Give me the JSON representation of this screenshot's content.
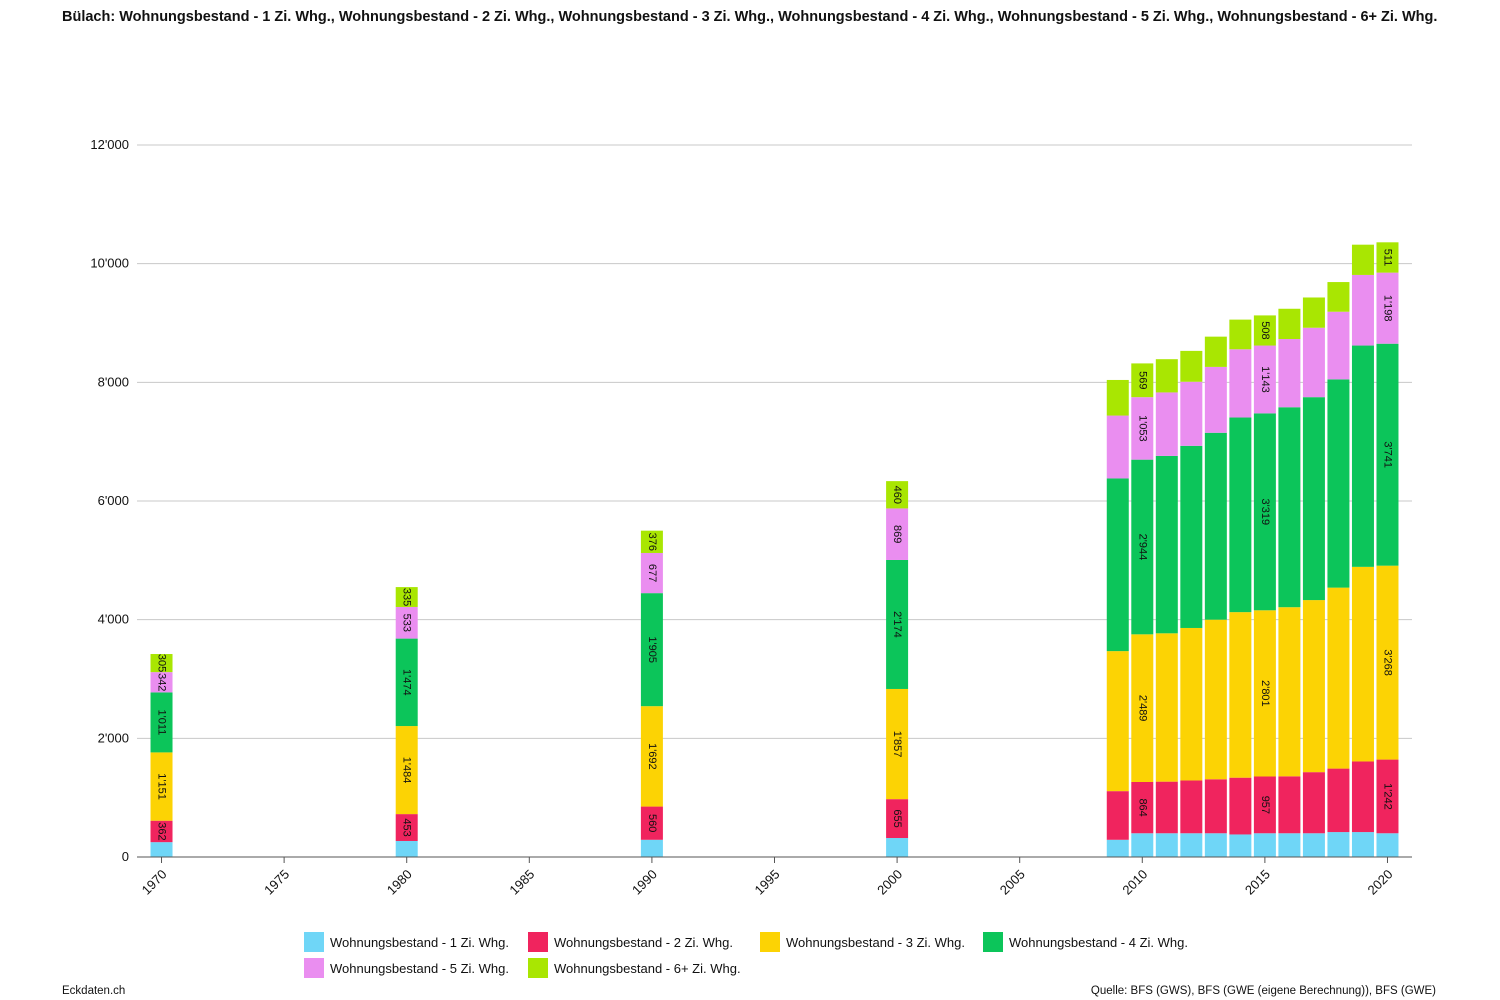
{
  "title": "Bülach: Wohnungsbestand - 1 Zi. Whg., Wohnungsbestand - 2 Zi. Whg., Wohnungsbestand - 3 Zi. Whg., Wohnungsbestand - 4 Zi. Whg., Wohnungsbestand - 5 Zi. Whg., Wohnungsbestand - 6+ Zi. Whg.",
  "footer": {
    "left": "Eckdaten.ch",
    "right": "Quelle: BFS (GWS), BFS (GWE (eigene Berechnung)), BFS (GWE)"
  },
  "chart_data": {
    "type": "bar",
    "stacked": true,
    "title": "Bülach: Wohnungsbestand - 1 Zi. Whg., Wohnungsbestand - 2 Zi. Whg., Wohnungsbestand - 3 Zi. Whg., Wohnungsbestand - 4 Zi. Whg., Wohnungsbestand - 5 Zi. Whg., Wohnungsbestand - 6+ Zi. Whg.",
    "xlabel": "",
    "ylabel": "",
    "x_ticks": [
      "1970",
      "1975",
      "1980",
      "1985",
      "1990",
      "1995",
      "2000",
      "2005",
      "2010",
      "2015",
      "2020"
    ],
    "x_range": [
      1969,
      2021
    ],
    "y_ticks": [
      "0",
      "2'000",
      "4'000",
      "6'000",
      "8'000",
      "10'000",
      "12'000"
    ],
    "ylim": [
      0,
      12000
    ],
    "grid": true,
    "legend_position": "bottom",
    "x": [
      1970,
      1980,
      1990,
      2000,
      2009,
      2010,
      2011,
      2012,
      2013,
      2014,
      2015,
      2016,
      2017,
      2018,
      2019,
      2020
    ],
    "series": [
      {
        "name": "Wohnungsbestand - 1 Zi. Whg.",
        "color": "#6fd6f7",
        "values": [
          250,
          270,
          290,
          320,
          290,
          400,
          400,
          400,
          400,
          380,
          400,
          400,
          400,
          420,
          420,
          400
        ]
      },
      {
        "name": "Wohnungsbestand - 2 Zi. Whg.",
        "color": "#f0245e",
        "values": [
          362,
          453,
          560,
          655,
          820,
          864,
          870,
          890,
          910,
          957,
          957,
          960,
          1030,
          1070,
          1190,
          1242
        ]
      },
      {
        "name": "Wohnungsbestand - 3 Zi. Whg.",
        "color": "#fcd304",
        "values": [
          1151,
          1484,
          1692,
          1857,
          2360,
          2489,
          2500,
          2570,
          2690,
          2790,
          2801,
          2850,
          2900,
          3050,
          3280,
          3268
        ]
      },
      {
        "name": "Wohnungsbestand - 4 Zi. Whg.",
        "color": "#0cc55a",
        "values": [
          1011,
          1474,
          1905,
          2174,
          2910,
          2944,
          2990,
          3070,
          3150,
          3280,
          3319,
          3370,
          3420,
          3510,
          3730,
          3741
        ]
      },
      {
        "name": "Wohnungsbestand - 5 Zi. Whg.",
        "color": "#ea8ef0",
        "values": [
          342,
          533,
          677,
          869,
          1060,
          1053,
          1070,
          1080,
          1110,
          1150,
          1143,
          1150,
          1170,
          1140,
          1190,
          1198
        ]
      },
      {
        "name": "Wohnungsbestand - 6+ Zi. Whg.",
        "color": "#a9e602",
        "values": [
          305,
          335,
          376,
          460,
          600,
          569,
          560,
          520,
          510,
          500,
          508,
          510,
          510,
          500,
          510,
          511
        ]
      }
    ],
    "data_labels": {
      "1970": [
        "362",
        "1'151",
        "1'011",
        "342",
        "305"
      ],
      "1980": [
        "453",
        "1'484",
        "1'474",
        "533",
        "335"
      ],
      "1990": [
        "560",
        "1'692",
        "1'905",
        "677",
        "376"
      ],
      "2000": [
        "655",
        "1'857",
        "2'174",
        "869",
        "460"
      ],
      "2010": [
        "864",
        "2'489",
        "2'944",
        "1'053",
        "569"
      ],
      "2015": [
        "957",
        "2'801",
        "3'319",
        "1'143",
        "508"
      ],
      "2020": [
        "1'242",
        "3'268",
        "3'741",
        "1'198",
        "511"
      ]
    }
  }
}
